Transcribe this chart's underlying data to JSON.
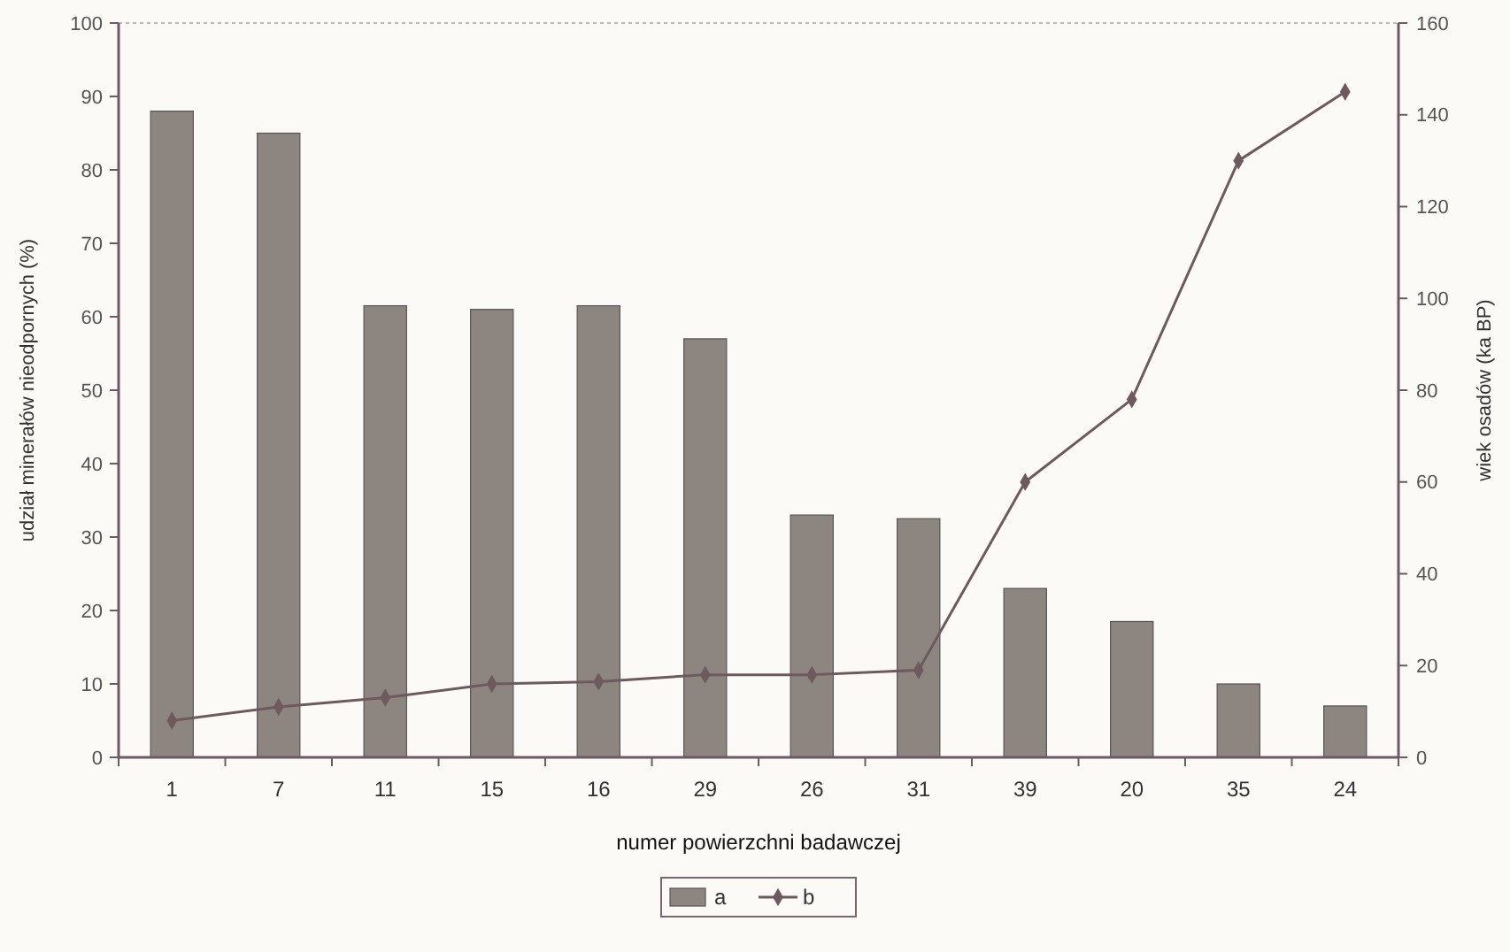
{
  "chart_data": {
    "type": "bar",
    "xlabel": "numer powierzchni badawczej",
    "ylabel": "udział minerałów nieodpornych (%)",
    "y2label": "wiek osadów (ka BP)",
    "categories": [
      "1",
      "7",
      "11",
      "15",
      "16",
      "29",
      "26",
      "31",
      "39",
      "20",
      "35",
      "24"
    ],
    "series": [
      {
        "name": "a",
        "color": "#8c8580",
        "values": [
          88,
          85,
          61.5,
          61,
          61.5,
          57,
          33,
          32.5,
          23,
          18.5,
          10,
          7
        ]
      },
      {
        "name": "b",
        "type": "line",
        "axis": "y2",
        "color": "#6e5a5e",
        "marker": "diamond",
        "values": [
          8,
          11,
          13,
          16,
          16.5,
          18,
          18,
          19,
          60,
          78,
          130,
          145
        ]
      }
    ],
    "ylim": [
      0,
      100
    ],
    "yticks": [
      0,
      10,
      20,
      30,
      40,
      50,
      60,
      70,
      80,
      90,
      100
    ],
    "y2lim": [
      0,
      160
    ],
    "y2ticks": [
      0,
      20,
      40,
      60,
      80,
      100,
      120,
      140,
      160
    ],
    "grid": false,
    "legend": "bottom"
  }
}
